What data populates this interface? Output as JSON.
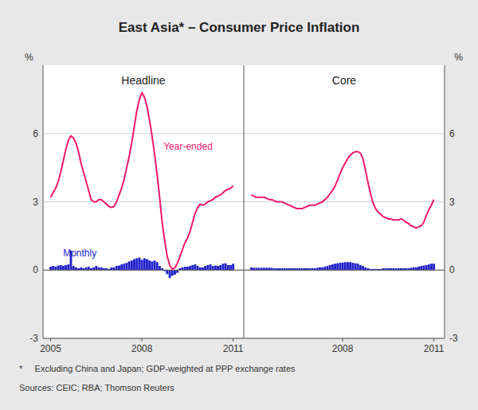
{
  "title": "East Asia* – Consumer Price Inflation",
  "footnotes": [
    "*     Excluding China and Japan; GDP-weighted at PPP exchange rates",
    "Sources: CEIC; RBA; Thomson Reuters"
  ],
  "chart_data": [
    {
      "type": "bar",
      "title": "Headline",
      "ylabel": "%",
      "grid": true,
      "xlim": [
        2004.75,
        2011.35
      ],
      "xticks": [
        2005,
        2008,
        2011
      ],
      "ylim": [
        -3,
        9
      ],
      "yticks": [
        -3,
        0,
        3,
        6
      ],
      "x": [
        2005.0,
        2005.083,
        2005.167,
        2005.25,
        2005.333,
        2005.417,
        2005.5,
        2005.583,
        2005.667,
        2005.75,
        2005.833,
        2005.917,
        2006.0,
        2006.083,
        2006.167,
        2006.25,
        2006.333,
        2006.417,
        2006.5,
        2006.583,
        2006.667,
        2006.75,
        2006.833,
        2006.917,
        2007.0,
        2007.083,
        2007.167,
        2007.25,
        2007.333,
        2007.417,
        2007.5,
        2007.583,
        2007.667,
        2007.75,
        2007.833,
        2007.917,
        2008.0,
        2008.083,
        2008.167,
        2008.25,
        2008.333,
        2008.417,
        2008.5,
        2008.583,
        2008.667,
        2008.75,
        2008.833,
        2008.917,
        2009.0,
        2009.083,
        2009.167,
        2009.25,
        2009.333,
        2009.417,
        2009.5,
        2009.583,
        2009.667,
        2009.75,
        2009.833,
        2009.917,
        2010.0,
        2010.083,
        2010.167,
        2010.25,
        2010.333,
        2010.417,
        2010.5,
        2010.583,
        2010.667,
        2010.75,
        2010.833,
        2010.917,
        2011.0
      ],
      "series": [
        {
          "name": "Monthly",
          "type": "bar",
          "color": "#2020CC",
          "values": [
            0.15,
            0.18,
            0.15,
            0.2,
            0.22,
            0.18,
            0.22,
            0.25,
            0.85,
            0.18,
            0.12,
            0.08,
            0.12,
            0.08,
            0.12,
            0.15,
            0.08,
            0.12,
            0.18,
            0.12,
            0.12,
            0.08,
            0.08,
            0.05,
            0.12,
            0.12,
            0.18,
            0.2,
            0.25,
            0.28,
            0.32,
            0.38,
            0.42,
            0.48,
            0.52,
            0.55,
            0.45,
            0.52,
            0.48,
            0.42,
            0.38,
            0.42,
            0.35,
            0.18,
            0.08,
            -0.05,
            -0.18,
            -0.35,
            -0.25,
            -0.2,
            -0.12,
            0.08,
            0.12,
            0.15,
            0.15,
            0.18,
            0.22,
            0.25,
            0.18,
            0.12,
            0.12,
            0.18,
            0.22,
            0.25,
            0.18,
            0.2,
            0.18,
            0.22,
            0.28,
            0.3,
            0.22,
            0.22,
            0.28
          ]
        },
        {
          "name": "Year-ended",
          "type": "line",
          "color": "#F0186C",
          "values": [
            3.2,
            3.4,
            3.6,
            3.9,
            4.3,
            4.8,
            5.3,
            5.7,
            5.9,
            5.8,
            5.6,
            5.2,
            4.7,
            4.3,
            3.9,
            3.5,
            3.1,
            3.0,
            3.0,
            3.1,
            3.1,
            3.0,
            2.9,
            2.8,
            2.75,
            2.8,
            3.0,
            3.3,
            3.6,
            4.0,
            4.5,
            5.0,
            5.6,
            6.3,
            7.0,
            7.5,
            7.8,
            7.6,
            7.2,
            6.6,
            5.9,
            5.1,
            4.2,
            3.2,
            2.1,
            1.3,
            0.6,
            0.2,
            0.05,
            0.1,
            0.3,
            0.6,
            0.9,
            1.2,
            1.4,
            1.7,
            2.1,
            2.5,
            2.75,
            2.9,
            2.85,
            2.9,
            3.0,
            3.05,
            3.1,
            3.2,
            3.25,
            3.3,
            3.4,
            3.5,
            3.55,
            3.6,
            3.7
          ]
        }
      ]
    },
    {
      "type": "bar",
      "title": "Core",
      "ylabel": "%",
      "grid": true,
      "xlim": [
        2004.75,
        2011.35
      ],
      "xticks": [
        2008,
        2011
      ],
      "ylim": [
        -3,
        9
      ],
      "yticks": [
        -3,
        0,
        3,
        6
      ],
      "x": [
        2005.0,
        2005.083,
        2005.167,
        2005.25,
        2005.333,
        2005.417,
        2005.5,
        2005.583,
        2005.667,
        2005.75,
        2005.833,
        2005.917,
        2006.0,
        2006.083,
        2006.167,
        2006.25,
        2006.333,
        2006.417,
        2006.5,
        2006.583,
        2006.667,
        2006.75,
        2006.833,
        2006.917,
        2007.0,
        2007.083,
        2007.167,
        2007.25,
        2007.333,
        2007.417,
        2007.5,
        2007.583,
        2007.667,
        2007.75,
        2007.833,
        2007.917,
        2008.0,
        2008.083,
        2008.167,
        2008.25,
        2008.333,
        2008.417,
        2008.5,
        2008.583,
        2008.667,
        2008.75,
        2008.833,
        2008.917,
        2009.0,
        2009.083,
        2009.167,
        2009.25,
        2009.333,
        2009.417,
        2009.5,
        2009.583,
        2009.667,
        2009.75,
        2009.833,
        2009.917,
        2010.0,
        2010.083,
        2010.167,
        2010.25,
        2010.333,
        2010.417,
        2010.5,
        2010.583,
        2010.667,
        2010.75,
        2010.833,
        2010.917,
        2011.0
      ],
      "series": [
        {
          "type": "bar",
          "color": "#2020CC",
          "values": [
            0.12,
            0.1,
            0.1,
            0.1,
            0.1,
            0.1,
            0.1,
            0.1,
            0.1,
            0.08,
            0.08,
            0.08,
            0.08,
            0.08,
            0.08,
            0.08,
            0.08,
            0.08,
            0.08,
            0.08,
            0.08,
            0.08,
            0.08,
            0.08,
            0.08,
            0.08,
            0.1,
            0.12,
            0.12,
            0.15,
            0.18,
            0.22,
            0.25,
            0.28,
            0.3,
            0.32,
            0.33,
            0.35,
            0.35,
            0.35,
            0.32,
            0.3,
            0.28,
            0.22,
            0.18,
            0.12,
            0.08,
            0.05,
            0.05,
            0.05,
            0.05,
            0.05,
            0.08,
            0.08,
            0.08,
            0.08,
            0.08,
            0.08,
            0.08,
            0.08,
            0.08,
            0.08,
            0.08,
            0.1,
            0.12,
            0.12,
            0.15,
            0.18,
            0.2,
            0.22,
            0.25,
            0.28,
            0.28
          ]
        },
        {
          "type": "line",
          "color": "#F0186C",
          "values": [
            3.3,
            3.25,
            3.2,
            3.2,
            3.2,
            3.2,
            3.15,
            3.1,
            3.1,
            3.05,
            3.0,
            3.0,
            3.0,
            2.95,
            2.9,
            2.85,
            2.8,
            2.75,
            2.7,
            2.7,
            2.7,
            2.75,
            2.8,
            2.85,
            2.85,
            2.85,
            2.9,
            2.95,
            3.0,
            3.1,
            3.2,
            3.35,
            3.5,
            3.7,
            3.95,
            4.25,
            4.5,
            4.7,
            4.9,
            5.05,
            5.15,
            5.2,
            5.2,
            5.15,
            4.9,
            4.4,
            3.85,
            3.35,
            2.95,
            2.7,
            2.55,
            2.45,
            2.35,
            2.3,
            2.25,
            2.25,
            2.2,
            2.2,
            2.2,
            2.25,
            2.2,
            2.1,
            2.05,
            1.95,
            1.9,
            1.85,
            1.9,
            1.95,
            2.1,
            2.4,
            2.65,
            2.85,
            3.1
          ]
        }
      ]
    }
  ]
}
